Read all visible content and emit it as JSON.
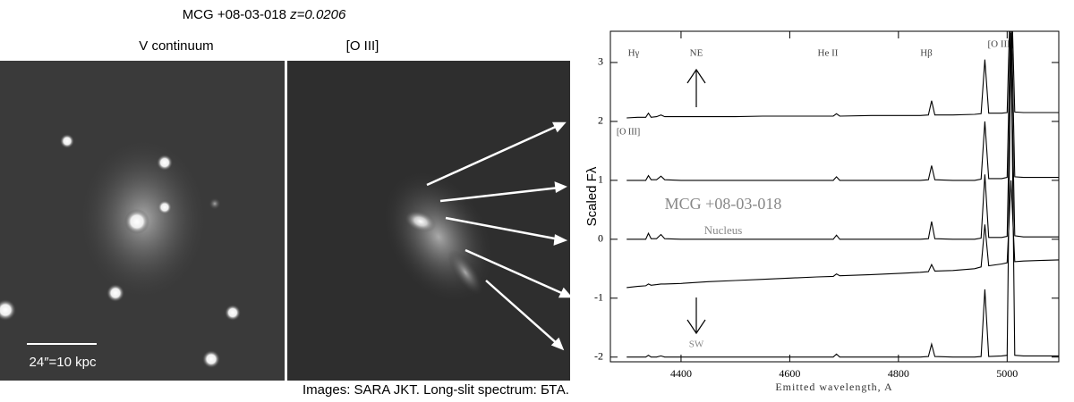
{
  "figure": {
    "title": "MCG +08-03-018",
    "redshift": "z=0.0206",
    "panel_left": "V continuum",
    "panel_right": "[O III]",
    "scale_bar": "24″=10 kpc",
    "caption": "Images: SARA JKT. Long-slit spectrum: БТА."
  },
  "chart_data": {
    "type": "line",
    "xlabel": "Emitted wavelength, A",
    "ylabel": "Scaled Fλ",
    "annotations": [
      "Hγ",
      "NE",
      "He II",
      "Hβ",
      "[O III]",
      "[O III]",
      "MCG +08-03-018",
      "Nucleus",
      "SW"
    ],
    "xlim": [
      4270,
      5095
    ],
    "ylim": [
      -2.08,
      3.53
    ],
    "xticks": [
      4400,
      4600,
      4800,
      5000
    ],
    "yticks": [
      -2,
      -1,
      0,
      1,
      2,
      3
    ],
    "x": [
      4300,
      4320,
      4335,
      4340,
      4345,
      4355,
      4363,
      4370,
      4400,
      4450,
      4500,
      4550,
      4600,
      4650,
      4680,
      4686,
      4692,
      4750,
      4800,
      4840,
      4855,
      4861,
      4867,
      4900,
      4940,
      4952,
      4959,
      4966,
      4990,
      5000,
      5007,
      5014,
      5030,
      5060,
      5100
    ],
    "series": [
      {
        "color": "#000000",
        "values": [
          2.06,
          2.07,
          2.07,
          2.14,
          2.07,
          2.08,
          2.11,
          2.08,
          2.08,
          2.08,
          2.08,
          2.09,
          2.09,
          2.09,
          2.09,
          2.13,
          2.09,
          2.1,
          2.1,
          2.1,
          2.11,
          2.35,
          2.11,
          2.11,
          2.12,
          2.13,
          3.05,
          2.14,
          2.14,
          2.15,
          4.5,
          2.16,
          2.15,
          2.15,
          2.15
        ]
      },
      {
        "color": "#000000",
        "values": [
          1,
          1,
          1,
          1.08,
          1.01,
          1.01,
          1.07,
          1.01,
          1,
          1,
          1,
          1,
          1,
          1,
          1,
          1.06,
          1,
          1,
          1,
          1,
          1.01,
          1.25,
          1.01,
          1,
          1,
          1.02,
          2,
          1.03,
          1.03,
          1.05,
          4,
          1.06,
          1.05,
          1.05,
          1.05
        ]
      },
      {
        "color": "#000000",
        "values": [
          0,
          0,
          0,
          0.1,
          0.01,
          0.01,
          0.08,
          0.01,
          0,
          0,
          0,
          0,
          0,
          0,
          0,
          0.07,
          0,
          0,
          0,
          0,
          0.01,
          0.3,
          0.01,
          0,
          0,
          0.02,
          1.1,
          0.03,
          0.03,
          0.05,
          3.2,
          0.06,
          0.04,
          0.04,
          0.04
        ]
      },
      {
        "color": "#000000",
        "values": [
          -0.82,
          -0.8,
          -0.79,
          -0.76,
          -0.78,
          -0.77,
          -0.76,
          -0.76,
          -0.75,
          -0.72,
          -0.7,
          -0.68,
          -0.66,
          -0.64,
          -0.63,
          -0.59,
          -0.62,
          -0.6,
          -0.58,
          -0.56,
          -0.55,
          -0.43,
          -0.54,
          -0.53,
          -0.5,
          -0.47,
          0.25,
          -0.45,
          -0.42,
          -0.4,
          1,
          -0.38,
          -0.37,
          -0.36,
          -0.35
        ]
      },
      {
        "color": "#000000",
        "values": [
          -2,
          -2,
          -2,
          -1.97,
          -2,
          -2,
          -1.98,
          -2,
          -2,
          -2,
          -2,
          -2,
          -2,
          -2,
          -2,
          -1.95,
          -2,
          -2,
          -2,
          -2,
          -1.99,
          -1.78,
          -1.99,
          -2,
          -2,
          -1.99,
          -0.85,
          -1.99,
          -1.98,
          -1.97,
          3.5,
          -1.97,
          -1.98,
          -1.98,
          -1.98
        ]
      }
    ]
  }
}
